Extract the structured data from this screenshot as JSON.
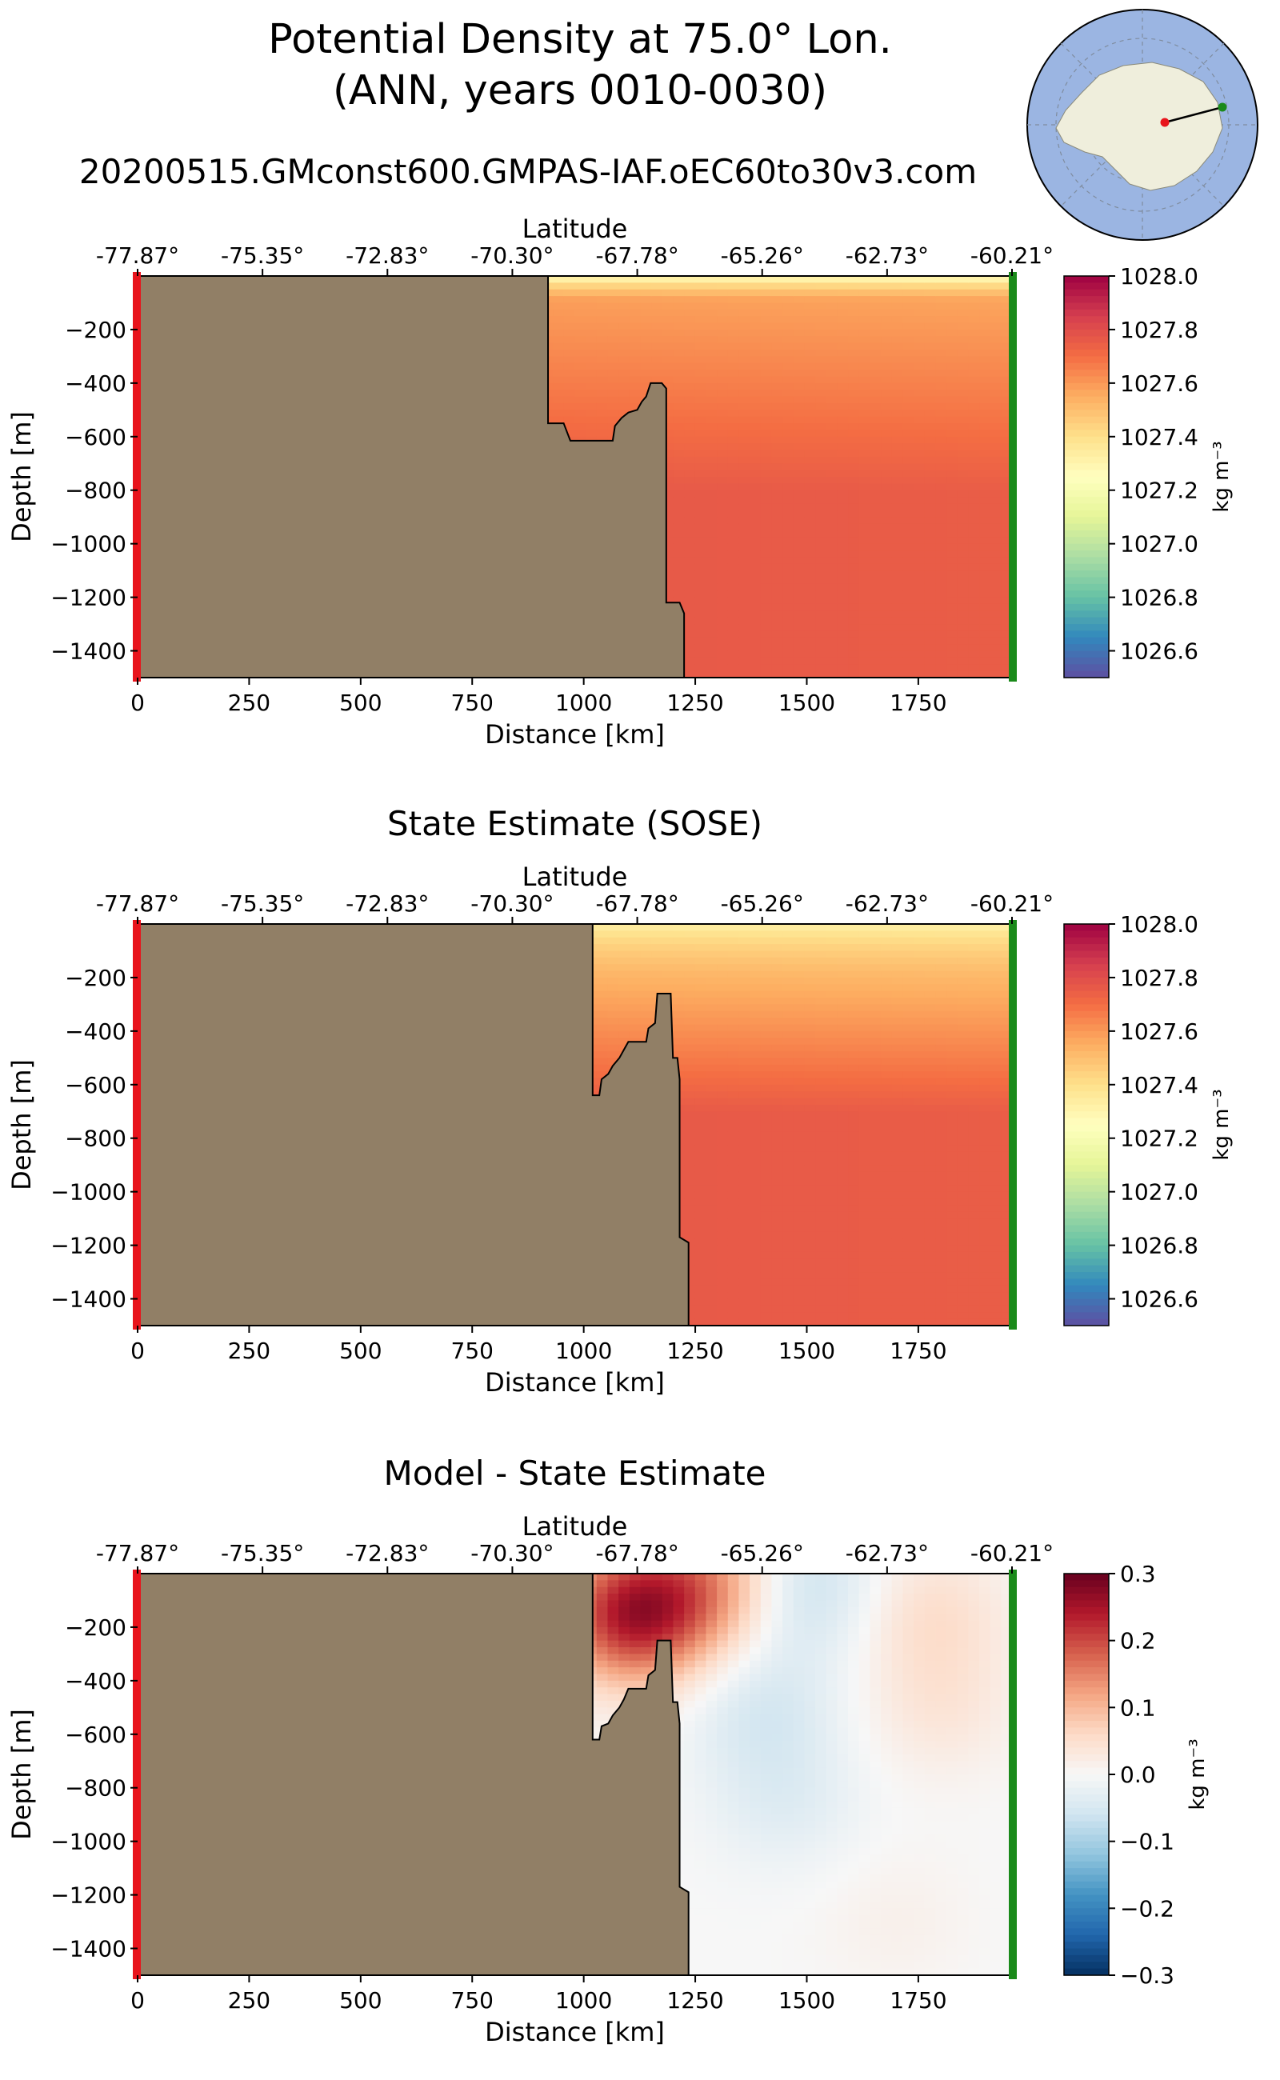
{
  "figure": {
    "title_line1": "Potential Density at 75.0° Lon.",
    "title_line2": "(ANN, years 0010-0030)",
    "run_name": "20200515.GMconst600.GMPAS-IAF.oEC60to30v3.com"
  },
  "chart_data": [
    {
      "type": "heatmap",
      "title": "",
      "xlabel": "Distance [km]",
      "ylabel": "Depth [m]",
      "top_axis_label": "Latitude",
      "xlim": [
        0,
        1960
      ],
      "ylim": [
        -1500,
        0
      ],
      "x_ticks": [
        0,
        250,
        500,
        750,
        1000,
        1250,
        1500,
        1750
      ],
      "y_ticks": [
        -200,
        -400,
        -600,
        -800,
        -1000,
        -1200,
        -1400
      ],
      "top_ticks": [
        {
          "x": 0,
          "label": "-77.87°"
        },
        {
          "x": 280,
          "label": "-75.35°"
        },
        {
          "x": 560,
          "label": "-72.83°"
        },
        {
          "x": 840,
          "label": "-70.30°"
        },
        {
          "x": 1120,
          "label": "-67.78°"
        },
        {
          "x": 1400,
          "label": "-65.26°"
        },
        {
          "x": 1680,
          "label": "-62.73°"
        },
        {
          "x": 1960,
          "label": "-60.21°"
        }
      ],
      "colorbar": {
        "label": "kg m⁻³",
        "min": 1026.5,
        "max": 1028.0,
        "colormap": "Spectral_r",
        "ticks": [
          1028.0,
          1027.8,
          1027.6,
          1027.4,
          1027.2,
          1027.0,
          1026.8,
          1026.6
        ]
      },
      "field": {
        "surface": 1027.18,
        "upper_ocean": 1027.6,
        "deep_ocean": 1027.78,
        "surface_layer_depth": 90,
        "transition_depth": 800
      },
      "bathymetry_profile": [
        [
          0,
          0
        ],
        [
          920,
          0
        ],
        [
          920,
          -550
        ],
        [
          955,
          -550
        ],
        [
          970,
          -615
        ],
        [
          1065,
          -615
        ],
        [
          1070,
          -560
        ],
        [
          1085,
          -530
        ],
        [
          1100,
          -510
        ],
        [
          1120,
          -500
        ],
        [
          1130,
          -470
        ],
        [
          1140,
          -450
        ],
        [
          1150,
          -400
        ],
        [
          1175,
          -400
        ],
        [
          1185,
          -420
        ],
        [
          1185,
          -1220
        ],
        [
          1215,
          -1220
        ],
        [
          1225,
          -1260
        ],
        [
          1225,
          -1500
        ]
      ]
    },
    {
      "type": "heatmap",
      "title": "State Estimate (SOSE)",
      "xlabel": "Distance [km]",
      "ylabel": "Depth [m]",
      "top_axis_label": "Latitude",
      "xlim": [
        0,
        1960
      ],
      "ylim": [
        -1500,
        0
      ],
      "x_ticks": [
        0,
        250,
        500,
        750,
        1000,
        1250,
        1500,
        1750
      ],
      "y_ticks": [
        -200,
        -400,
        -600,
        -800,
        -1000,
        -1200,
        -1400
      ],
      "top_ticks": [
        {
          "x": 0,
          "label": "-77.87°"
        },
        {
          "x": 280,
          "label": "-75.35°"
        },
        {
          "x": 560,
          "label": "-72.83°"
        },
        {
          "x": 840,
          "label": "-70.30°"
        },
        {
          "x": 1120,
          "label": "-67.78°"
        },
        {
          "x": 1400,
          "label": "-65.26°"
        },
        {
          "x": 1680,
          "label": "-62.73°"
        },
        {
          "x": 1960,
          "label": "-60.21°"
        }
      ],
      "colorbar": {
        "label": "kg m⁻³",
        "min": 1026.5,
        "max": 1028.0,
        "colormap": "Spectral_r",
        "ticks": [
          1028.0,
          1027.8,
          1027.6,
          1027.4,
          1027.2,
          1027.0,
          1026.8,
          1026.6
        ]
      },
      "field": {
        "surface": 1027.3,
        "upper_ocean": 1027.55,
        "deep_ocean": 1027.78,
        "surface_layer_depth": 200,
        "transition_depth": 700
      },
      "bathymetry_profile": [
        [
          0,
          0
        ],
        [
          1020,
          0
        ],
        [
          1020,
          -640
        ],
        [
          1035,
          -640
        ],
        [
          1040,
          -580
        ],
        [
          1055,
          -560
        ],
        [
          1065,
          -530
        ],
        [
          1080,
          -500
        ],
        [
          1090,
          -470
        ],
        [
          1100,
          -440
        ],
        [
          1140,
          -440
        ],
        [
          1145,
          -390
        ],
        [
          1160,
          -370
        ],
        [
          1165,
          -260
        ],
        [
          1195,
          -260
        ],
        [
          1200,
          -500
        ],
        [
          1210,
          -500
        ],
        [
          1215,
          -580
        ],
        [
          1215,
          -1170
        ],
        [
          1235,
          -1190
        ],
        [
          1235,
          -1500
        ]
      ]
    },
    {
      "type": "heatmap",
      "title": "Model - State Estimate",
      "xlabel": "Distance [km]",
      "ylabel": "Depth [m]",
      "top_axis_label": "Latitude",
      "xlim": [
        0,
        1960
      ],
      "ylim": [
        -1500,
        0
      ],
      "x_ticks": [
        0,
        250,
        500,
        750,
        1000,
        1250,
        1500,
        1750
      ],
      "y_ticks": [
        -200,
        -400,
        -600,
        -800,
        -1000,
        -1200,
        -1400
      ],
      "top_ticks": [
        {
          "x": 0,
          "label": "-77.87°"
        },
        {
          "x": 280,
          "label": "-75.35°"
        },
        {
          "x": 560,
          "label": "-72.83°"
        },
        {
          "x": 840,
          "label": "-70.30°"
        },
        {
          "x": 1120,
          "label": "-67.78°"
        },
        {
          "x": 1400,
          "label": "-65.26°"
        },
        {
          "x": 1680,
          "label": "-62.73°"
        },
        {
          "x": 1960,
          "label": "-60.21°"
        }
      ],
      "colorbar": {
        "label": "kg m⁻³",
        "min": -0.3,
        "max": 0.3,
        "colormap": "RdBu_r",
        "ticks": [
          0.3,
          0.2,
          0.1,
          0.0,
          -0.1,
          -0.2,
          -0.3
        ]
      },
      "field": {
        "features": [
          {
            "x": 1110,
            "depth": 150,
            "value": 0.24
          },
          {
            "x": 1300,
            "depth": 40,
            "value": 0.12
          },
          {
            "x": 1480,
            "depth": 50,
            "value": -0.08
          },
          {
            "x": 1400,
            "depth": 500,
            "value": -0.05
          },
          {
            "x": 1450,
            "depth": 850,
            "value": -0.035
          },
          {
            "x": 1780,
            "depth": 150,
            "value": 0.05
          },
          {
            "x": 1800,
            "depth": 500,
            "value": 0.035
          },
          {
            "x": 1700,
            "depth": 1300,
            "value": 0.015
          }
        ]
      },
      "bathymetry_profile": [
        [
          0,
          0
        ],
        [
          1020,
          0
        ],
        [
          1020,
          -620
        ],
        [
          1035,
          -620
        ],
        [
          1040,
          -570
        ],
        [
          1055,
          -560
        ],
        [
          1065,
          -530
        ],
        [
          1080,
          -500
        ],
        [
          1090,
          -470
        ],
        [
          1100,
          -430
        ],
        [
          1140,
          -430
        ],
        [
          1145,
          -380
        ],
        [
          1160,
          -360
        ],
        [
          1165,
          -250
        ],
        [
          1195,
          -250
        ],
        [
          1200,
          -480
        ],
        [
          1210,
          -480
        ],
        [
          1215,
          -560
        ],
        [
          1215,
          -1170
        ],
        [
          1235,
          -1190
        ],
        [
          1235,
          -1500
        ]
      ]
    }
  ],
  "inset_map": {
    "section_start_color": "#e8141c",
    "section_end_color": "#1a8a1a"
  }
}
